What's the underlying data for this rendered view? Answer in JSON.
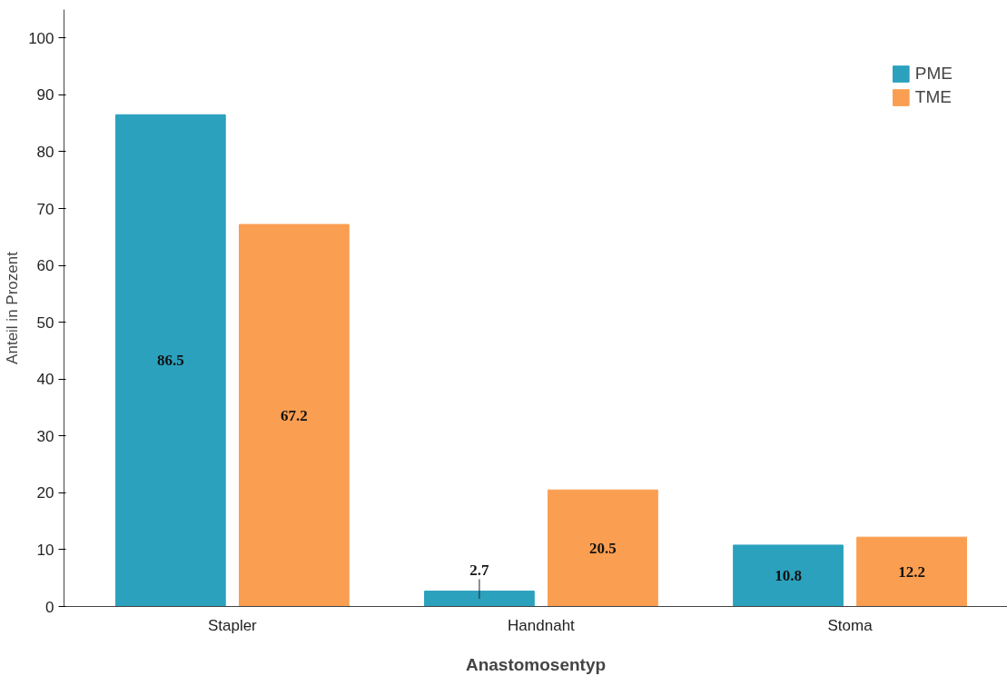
{
  "chart_data": {
    "type": "bar",
    "xlabel": "Anastomosentyp",
    "ylabel": "Anteil in Prozent",
    "categories": [
      "Stapler",
      "Handnaht",
      "Stoma"
    ],
    "series": [
      {
        "name": "PME",
        "color": "#2ba1bd",
        "values": [
          86.5,
          2.7,
          10.8
        ]
      },
      {
        "name": "TME",
        "color": "#fa9e52",
        "values": [
          67.2,
          20.5,
          12.2
        ]
      }
    ],
    "ylim": [
      0,
      105
    ],
    "yticks": [
      0,
      10,
      20,
      30,
      40,
      50,
      60,
      70,
      80,
      90,
      100
    ],
    "grid": false,
    "legend": "top right",
    "data_labels": true
  }
}
